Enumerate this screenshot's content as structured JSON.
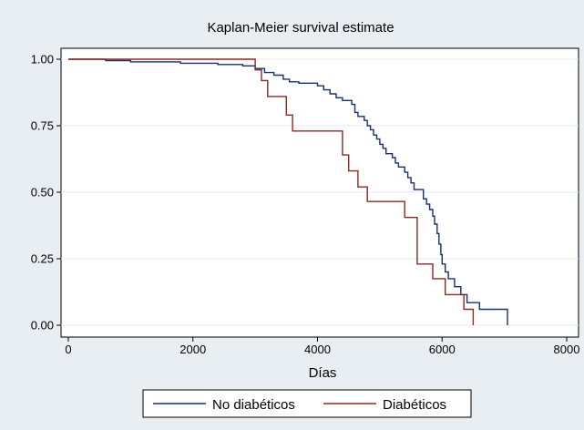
{
  "chart_data": {
    "type": "line",
    "title": "Kaplan-Meier survival estimate",
    "xlabel": "Días",
    "ylabel": "",
    "xlim": [
      0,
      8000
    ],
    "ylim": [
      0,
      1
    ],
    "x_ticks": [
      0,
      2000,
      4000,
      6000,
      8000
    ],
    "x_tick_labels": [
      "0",
      "2000",
      "4000",
      "6000",
      "8000"
    ],
    "y_ticks": [
      0,
      0.25,
      0.5,
      0.75,
      1
    ],
    "y_tick_labels": [
      "0.00",
      "0.25",
      "0.50",
      "0.75",
      "1.00"
    ],
    "grid": "horizontal",
    "legend_position": "bottom",
    "step": true,
    "series": [
      {
        "name": "No diabéticos",
        "color": "#1a2f73",
        "points": [
          [
            0,
            1.0
          ],
          [
            600,
            0.995
          ],
          [
            1000,
            0.99
          ],
          [
            1800,
            0.985
          ],
          [
            2400,
            0.98
          ],
          [
            2800,
            0.975
          ],
          [
            3000,
            0.965
          ],
          [
            3150,
            0.95
          ],
          [
            3300,
            0.94
          ],
          [
            3450,
            0.925
          ],
          [
            3550,
            0.915
          ],
          [
            3700,
            0.91
          ],
          [
            4000,
            0.9
          ],
          [
            4100,
            0.885
          ],
          [
            4200,
            0.87
          ],
          [
            4300,
            0.855
          ],
          [
            4400,
            0.845
          ],
          [
            4550,
            0.83
          ],
          [
            4600,
            0.8
          ],
          [
            4650,
            0.785
          ],
          [
            4750,
            0.77
          ],
          [
            4800,
            0.75
          ],
          [
            4850,
            0.735
          ],
          [
            4900,
            0.715
          ],
          [
            4950,
            0.7
          ],
          [
            5000,
            0.68
          ],
          [
            5050,
            0.665
          ],
          [
            5100,
            0.645
          ],
          [
            5200,
            0.63
          ],
          [
            5250,
            0.61
          ],
          [
            5300,
            0.595
          ],
          [
            5400,
            0.575
          ],
          [
            5450,
            0.555
          ],
          [
            5500,
            0.535
          ],
          [
            5550,
            0.51
          ],
          [
            5700,
            0.475
          ],
          [
            5750,
            0.455
          ],
          [
            5800,
            0.435
          ],
          [
            5850,
            0.41
          ],
          [
            5880,
            0.38
          ],
          [
            5920,
            0.345
          ],
          [
            5950,
            0.305
          ],
          [
            5980,
            0.265
          ],
          [
            6000,
            0.23
          ],
          [
            6050,
            0.2
          ],
          [
            6100,
            0.175
          ],
          [
            6200,
            0.145
          ],
          [
            6300,
            0.115
          ],
          [
            6400,
            0.085
          ],
          [
            6600,
            0.06
          ],
          [
            7050,
            0.0
          ]
        ]
      },
      {
        "name": "Diabéticos",
        "color": "#8b2a24",
        "points": [
          [
            0,
            1.0
          ],
          [
            3000,
            0.96
          ],
          [
            3100,
            0.92
          ],
          [
            3200,
            0.86
          ],
          [
            3500,
            0.79
          ],
          [
            3600,
            0.73
          ],
          [
            4400,
            0.64
          ],
          [
            4500,
            0.58
          ],
          [
            4650,
            0.52
          ],
          [
            4800,
            0.465
          ],
          [
            5400,
            0.405
          ],
          [
            5600,
            0.23
          ],
          [
            5850,
            0.175
          ],
          [
            6050,
            0.115
          ],
          [
            6350,
            0.06
          ],
          [
            6500,
            0.0
          ]
        ]
      }
    ]
  }
}
